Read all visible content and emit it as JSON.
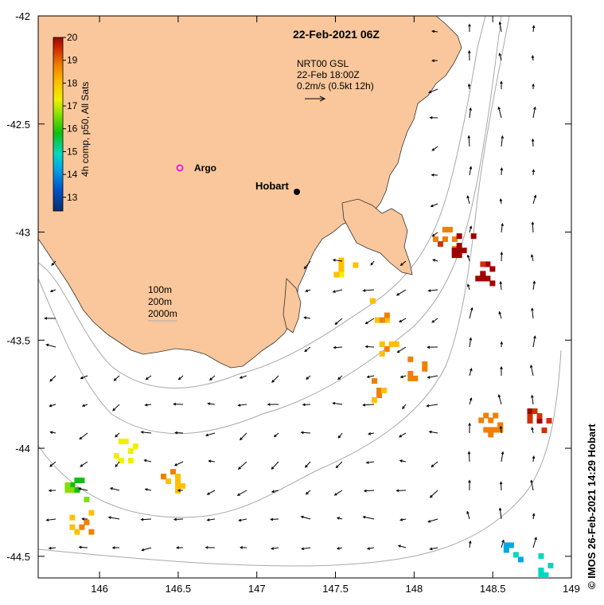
{
  "title": "22-Feb-2021 06Z",
  "legend": {
    "label": "4h comp, p50, All Sats",
    "ticks": [
      "20",
      "19",
      "18",
      "17",
      "16",
      "15",
      "14",
      "13"
    ],
    "min": 12.4,
    "max": 20,
    "colors": [
      "#08306b",
      "#0050c8",
      "#00a8e8",
      "#00d8c0",
      "#10c010",
      "#80e000",
      "#f0f000",
      "#ffc000",
      "#f08000",
      "#d03000",
      "#a00000"
    ]
  },
  "current_ref": {
    "line1": "NRT00 GSL",
    "line2": "22-Feb 18:00Z",
    "line3": "0.2m/s (0.5kt 12h)"
  },
  "contours_legend": [
    "100m",
    "200m",
    "2000m"
  ],
  "places": {
    "hobart": "Hobart",
    "argo": "Argo"
  },
  "axes": {
    "x_ticks": [
      "146",
      "146.5",
      "147",
      "147.5",
      "148",
      "148.5",
      "149"
    ],
    "y_ticks": [
      "-42",
      "-42.5",
      "-43",
      "-43.5",
      "-44",
      "-44.5"
    ],
    "xlim": [
      145.61,
      149
    ],
    "ylim": [
      -44.6,
      -42
    ]
  },
  "credit": "© IMOS 26-Feb-2021 14:29 Hobart",
  "sst_patches": [
    {
      "lon": 148.18,
      "lat": -43.02,
      "sst": 18.8
    },
    {
      "lon": 148.3,
      "lat": -43.05,
      "sst": 19.8
    },
    {
      "lon": 148.42,
      "lat": -43.18,
      "sst": 19.9
    },
    {
      "lon": 147.55,
      "lat": -43.14,
      "sst": 17.6
    },
    {
      "lon": 147.78,
      "lat": -43.35,
      "sst": 18.1
    },
    {
      "lon": 147.84,
      "lat": -43.55,
      "sst": 18.0
    },
    {
      "lon": 148.02,
      "lat": -43.62,
      "sst": 18.6
    },
    {
      "lon": 147.73,
      "lat": -43.72,
      "sst": 17.8
    },
    {
      "lon": 148.47,
      "lat": -43.88,
      "sst": 18.6
    },
    {
      "lon": 148.78,
      "lat": -43.86,
      "sst": 19.5
    },
    {
      "lon": 146.15,
      "lat": -44.0,
      "sst": 16.9
    },
    {
      "lon": 146.45,
      "lat": -44.14,
      "sst": 18.0
    },
    {
      "lon": 145.84,
      "lat": -44.18,
      "sst": 16.0
    },
    {
      "lon": 145.87,
      "lat": -44.33,
      "sst": 17.9
    },
    {
      "lon": 148.63,
      "lat": -44.48,
      "sst": 14.3
    },
    {
      "lon": 148.82,
      "lat": -44.53,
      "sst": 14.5
    }
  ]
}
